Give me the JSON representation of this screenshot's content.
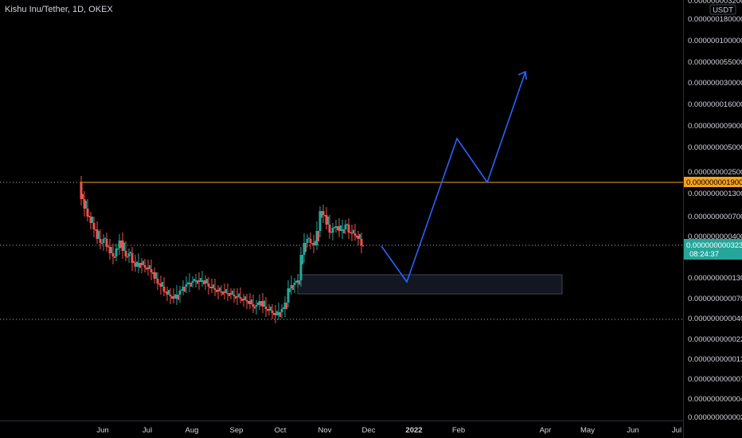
{
  "header": {
    "title": "Kishu Inu/Tether, 1D, OKEX"
  },
  "currency_badge": "USDT",
  "y_axis": {
    "top_partial": "0.0000000032000000",
    "ticks": [
      "0.0000001800000",
      "0.0000001000000",
      "0.0000000550000",
      "0.0000000300000",
      "0.0000000160000",
      "0.0000000090000",
      "0.0000000050000",
      "0.0000000025000",
      "0.0000000013000",
      "0.0000000007000",
      "0.0000000004000",
      "0.0000000002200",
      "0.0000000001300",
      "0.0000000000700",
      "0.0000000000400",
      "0.0000000000220",
      "0.0000000000130",
      "0.0000000000075",
      "0.0000000000040",
      "0.0000000000023"
    ]
  },
  "x_axis": {
    "ticks": [
      "Jun",
      "Jul",
      "Aug",
      "Sep",
      "Oct",
      "Nov",
      "Dec",
      "2022",
      "Feb",
      "Apr",
      "May",
      "Jun",
      "Jul"
    ],
    "bold": [
      "2022"
    ]
  },
  "price_labels": {
    "horizontal_level": "0.0000000019000",
    "current_price": "0.0000000003230",
    "countdown": "08:24:37"
  },
  "colors": {
    "background": "#000000",
    "up": "#26a69a",
    "down": "#ef5350",
    "level_line": "#f7a21b",
    "projection": "#2962ff",
    "current_price_bg": "#26a69a"
  }
}
